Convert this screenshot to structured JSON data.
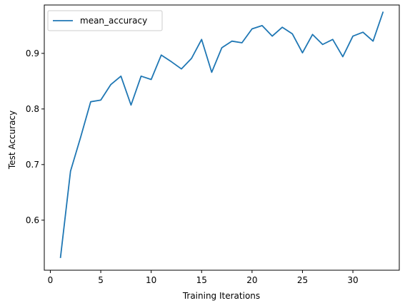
{
  "chart_data": {
    "type": "line",
    "xlabel": "Training Iterations",
    "ylabel": "Test Accuracy",
    "xlim": [
      -0.6,
      34.6
    ],
    "ylim": [
      0.51,
      0.987
    ],
    "xticks": [
      0,
      5,
      10,
      15,
      20,
      25,
      30
    ],
    "yticks": [
      0.6,
      0.7,
      0.8,
      0.9
    ],
    "grid": false,
    "legend": "upper-left",
    "series": [
      {
        "name": "mean_accuracy",
        "color": "#1f77b4",
        "x": [
          1,
          2,
          3,
          4,
          5,
          6,
          7,
          8,
          9,
          10,
          11,
          12,
          13,
          14,
          15,
          16,
          17,
          18,
          19,
          20,
          21,
          22,
          23,
          24,
          25,
          26,
          27,
          28,
          29,
          30,
          31,
          32,
          33
        ],
        "y": [
          0.532,
          0.688,
          0.749,
          0.813,
          0.816,
          0.844,
          0.859,
          0.807,
          0.859,
          0.853,
          0.897,
          0.885,
          0.872,
          0.891,
          0.925,
          0.866,
          0.91,
          0.922,
          0.919,
          0.944,
          0.95,
          0.931,
          0.947,
          0.935,
          0.901,
          0.934,
          0.916,
          0.925,
          0.894,
          0.931,
          0.938,
          0.922,
          0.975
        ]
      }
    ]
  }
}
